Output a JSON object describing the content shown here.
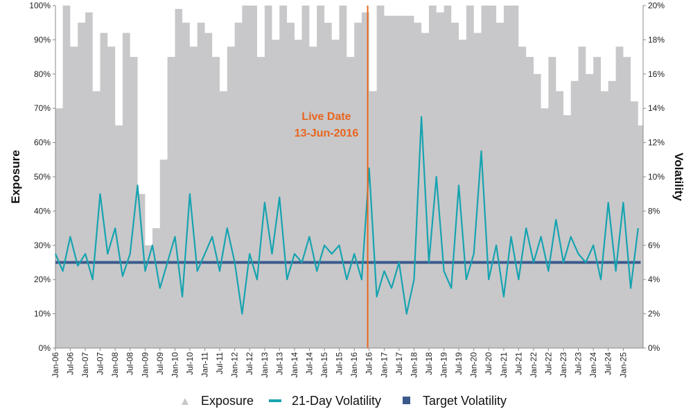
{
  "chart_data": {
    "type": "area",
    "title": "",
    "ylabel_left": "Exposure",
    "ylabel_right": "Volatility",
    "x_range": [
      "2006-01-01",
      "2025-08-31"
    ],
    "x_tick_labels": [
      "Jan-06",
      "Jul-06",
      "Jan-07",
      "Jul-07",
      "Jan-08",
      "Jul-08",
      "Jan-09",
      "Jul-09",
      "Jan-10",
      "Jul-10",
      "Jan-11",
      "Jul-11",
      "Jan-12",
      "Jul-12",
      "Jan-13",
      "Jul-13",
      "Jan-14",
      "Jul-14",
      "Jan-15",
      "Jul-15",
      "Jan-16",
      "Jul-16",
      "Jan-17",
      "Jul-17",
      "Jan-18",
      "Jul-18",
      "Jan-19",
      "Jul-19",
      "Jan-20",
      "Jul-20",
      "Jan-21",
      "Jul-21",
      "Jan-22",
      "Jul-22",
      "Jan-23",
      "Jul-23",
      "Jan-24",
      "Jul-24",
      "Jan-25"
    ],
    "y_left_range": [
      0,
      100
    ],
    "y_left_ticks": [
      "0%",
      "10%",
      "20%",
      "30%",
      "40%",
      "50%",
      "60%",
      "70%",
      "80%",
      "90%",
      "100%"
    ],
    "y_right_range": [
      0,
      20
    ],
    "y_right_ticks": [
      "0%",
      "2%",
      "4%",
      "6%",
      "8%",
      "10%",
      "12%",
      "14%",
      "16%",
      "18%",
      "20%"
    ],
    "grid": false,
    "legend_position": "bottom",
    "annotation": {
      "line1": "Live Date",
      "line2": "13-Jun-2016",
      "date": "2016-06-13",
      "color": "#e8651e"
    },
    "series": [
      {
        "name": "Exposure",
        "type": "area",
        "axis": "left",
        "color": "#c8c8ca",
        "unit": "%",
        "x": [
          "2006-01",
          "2006-04",
          "2006-07",
          "2006-10",
          "2007-01",
          "2007-04",
          "2007-07",
          "2007-10",
          "2008-01",
          "2008-04",
          "2008-07",
          "2008-10",
          "2009-01",
          "2009-04",
          "2009-07",
          "2009-10",
          "2010-01",
          "2010-04",
          "2010-07",
          "2010-10",
          "2011-01",
          "2011-04",
          "2011-07",
          "2011-10",
          "2012-01",
          "2012-04",
          "2012-07",
          "2012-10",
          "2013-01",
          "2013-04",
          "2013-07",
          "2013-10",
          "2014-01",
          "2014-04",
          "2014-07",
          "2014-10",
          "2015-01",
          "2015-04",
          "2015-07",
          "2015-10",
          "2016-01",
          "2016-04",
          "2016-07",
          "2016-10",
          "2017-01",
          "2017-04",
          "2017-07",
          "2017-10",
          "2018-01",
          "2018-04",
          "2018-07",
          "2018-10",
          "2019-01",
          "2019-04",
          "2019-07",
          "2019-10",
          "2020-01",
          "2020-04",
          "2020-07",
          "2020-10",
          "2021-01",
          "2021-04",
          "2021-07",
          "2021-10",
          "2022-01",
          "2022-04",
          "2022-07",
          "2022-10",
          "2023-01",
          "2023-04",
          "2023-07",
          "2023-10",
          "2024-01",
          "2024-04",
          "2024-07",
          "2024-10",
          "2025-01",
          "2025-04",
          "2025-07"
        ],
        "y": [
          70,
          100,
          88,
          95,
          98,
          75,
          92,
          88,
          65,
          92,
          85,
          45,
          30,
          35,
          55,
          85,
          99,
          95,
          88,
          95,
          92,
          85,
          75,
          88,
          95,
          100,
          100,
          85,
          100,
          90,
          100,
          95,
          90,
          100,
          88,
          100,
          95,
          90,
          100,
          85,
          95,
          98,
          75,
          100,
          97,
          97,
          97,
          97,
          95,
          92,
          100,
          98,
          100,
          95,
          90,
          100,
          92,
          100,
          100,
          95,
          100,
          100,
          88,
          85,
          80,
          70,
          85,
          75,
          68,
          78,
          88,
          80,
          85,
          75,
          78,
          88,
          85,
          72,
          65
        ]
      },
      {
        "name": "21-Day Volatility",
        "type": "line",
        "axis": "right",
        "color": "#16a3b0",
        "unit": "%",
        "x": [
          "2006-01",
          "2006-04",
          "2006-07",
          "2006-10",
          "2007-01",
          "2007-04",
          "2007-07",
          "2007-10",
          "2008-01",
          "2008-04",
          "2008-07",
          "2008-10",
          "2009-01",
          "2009-04",
          "2009-07",
          "2009-10",
          "2010-01",
          "2010-04",
          "2010-07",
          "2010-10",
          "2011-01",
          "2011-04",
          "2011-07",
          "2011-10",
          "2012-01",
          "2012-04",
          "2012-07",
          "2012-10",
          "2013-01",
          "2013-04",
          "2013-07",
          "2013-10",
          "2014-01",
          "2014-04",
          "2014-07",
          "2014-10",
          "2015-01",
          "2015-04",
          "2015-07",
          "2015-10",
          "2016-01",
          "2016-04",
          "2016-07",
          "2016-10",
          "2017-01",
          "2017-04",
          "2017-07",
          "2017-10",
          "2018-01",
          "2018-04",
          "2018-07",
          "2018-10",
          "2019-01",
          "2019-04",
          "2019-07",
          "2019-10",
          "2020-01",
          "2020-04",
          "2020-07",
          "2020-10",
          "2021-01",
          "2021-04",
          "2021-07",
          "2021-10",
          "2022-01",
          "2022-04",
          "2022-07",
          "2022-10",
          "2023-01",
          "2023-04",
          "2023-07",
          "2023-10",
          "2024-01",
          "2024-04",
          "2024-07",
          "2024-10",
          "2025-01",
          "2025-04",
          "2025-07"
        ],
        "y": [
          5.5,
          4.5,
          6.5,
          4.8,
          5.5,
          4.0,
          9.0,
          5.5,
          7.0,
          4.2,
          5.5,
          9.5,
          4.5,
          6.0,
          3.5,
          5.0,
          6.5,
          3.0,
          9.0,
          4.5,
          5.5,
          6.5,
          4.5,
          7.0,
          5.0,
          2.0,
          5.5,
          4.0,
          8.5,
          5.5,
          8.8,
          4.0,
          5.5,
          5.0,
          6.5,
          4.5,
          6.0,
          5.5,
          6.0,
          4.0,
          5.5,
          4.0,
          10.5,
          3.0,
          4.5,
          3.5,
          5.0,
          2.0,
          4.0,
          13.5,
          5.0,
          10.0,
          4.5,
          3.5,
          9.5,
          4.0,
          5.5,
          11.5,
          4.0,
          6.0,
          3.0,
          6.5,
          4.0,
          7.0,
          5.0,
          6.5,
          4.5,
          7.5,
          5.0,
          6.5,
          5.5,
          5.0,
          6.0,
          4.0,
          8.5,
          4.5,
          8.5,
          3.5,
          7.0
        ]
      },
      {
        "name": "Target Volatility",
        "type": "line",
        "axis": "right",
        "color": "#3a5a8c",
        "unit": "%",
        "x": [
          "2006-01",
          "2025-08"
        ],
        "y": [
          5,
          5
        ]
      }
    ]
  }
}
